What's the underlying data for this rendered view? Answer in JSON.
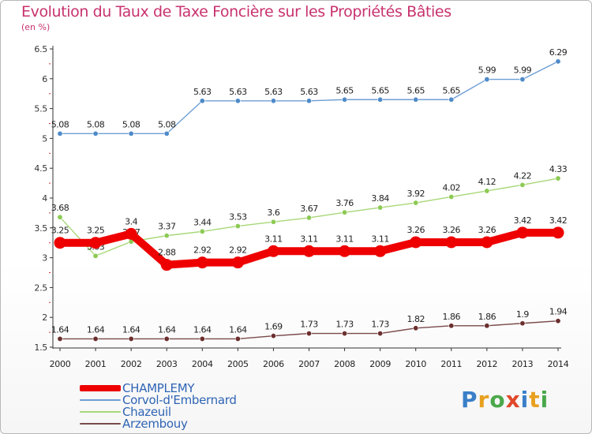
{
  "chart_data": {
    "type": "line",
    "title": "Evolution du Taux de Taxe Foncière sur les Propriétés Bâties",
    "subtitle": "(en %)",
    "xlabel": "",
    "ylabel": "",
    "x": [
      "2000",
      "2001",
      "2002",
      "2003",
      "2004",
      "2005",
      "2006",
      "2007",
      "2008",
      "2009",
      "2010",
      "2011",
      "2012",
      "2013",
      "2014"
    ],
    "ylim": [
      1.5,
      6.5
    ],
    "yticks": [
      1.5,
      2,
      2.5,
      3,
      3.5,
      4,
      4.5,
      5,
      5.5,
      6,
      6.5
    ],
    "grid": false,
    "legend_position": "bottom-left",
    "series": [
      {
        "name": "Corvol-d'Embernard",
        "color": "#6e9ed4",
        "marker": "#4f8ac9",
        "values": [
          5.08,
          5.08,
          5.08,
          5.08,
          5.63,
          5.63,
          5.63,
          5.63,
          5.65,
          5.65,
          5.65,
          5.65,
          5.99,
          5.99,
          6.29
        ],
        "labels": [
          "5.08",
          "5.08",
          "5.08",
          "5.08",
          "5.63",
          "5.63",
          "5.63",
          "5.63",
          "5.65",
          "5.65",
          "5.65",
          "5.65",
          "5.99",
          "5.99",
          "6.29"
        ]
      },
      {
        "name": "Chazeuil",
        "color": "#a8d878",
        "marker": "#8cca54",
        "values": [
          3.68,
          3.03,
          3.27,
          3.37,
          3.44,
          3.53,
          3.6,
          3.67,
          3.76,
          3.84,
          3.92,
          4.02,
          4.12,
          4.22,
          4.33
        ],
        "labels": [
          "3.68",
          "3.03",
          "3.27",
          "3.37",
          "3.44",
          "3.53",
          "3.6",
          "3.67",
          "3.76",
          "3.84",
          "3.92",
          "4.02",
          "4.12",
          "4.22",
          "4.33"
        ]
      },
      {
        "name": "Arzembouy",
        "color": "#7a4a4a",
        "marker": "#6b2e2e",
        "values": [
          1.64,
          1.64,
          1.64,
          1.64,
          1.64,
          1.64,
          1.69,
          1.73,
          1.73,
          1.73,
          1.82,
          1.86,
          1.86,
          1.9,
          1.94
        ],
        "labels": [
          "1.64",
          "1.64",
          "1.64",
          "1.64",
          "1.64",
          "1.64",
          "1.69",
          "1.73",
          "1.73",
          "1.73",
          "1.82",
          "1.86",
          "1.86",
          "1.9",
          "1.94"
        ]
      },
      {
        "name": "CHAMPLEMY",
        "color": "#ee0000",
        "marker": "#ee0000",
        "values": [
          3.25,
          3.25,
          3.4,
          2.88,
          2.92,
          2.92,
          3.11,
          3.11,
          3.11,
          3.11,
          3.26,
          3.26,
          3.26,
          3.42,
          3.42
        ],
        "labels": [
          "3.25",
          "3.25",
          "3.4",
          "2.88",
          "2.92",
          "2.92",
          "3.11",
          "3.11",
          "3.11",
          "3.11",
          "3.26",
          "3.26",
          "3.26",
          "3.42",
          "3.42"
        ]
      }
    ],
    "legend": [
      "CHAMPLEMY",
      "Corvol-d'Embernard",
      "Chazeuil",
      "Arzembouy"
    ]
  },
  "legend_items": [
    {
      "name": "CHAMPLEMY",
      "color": "#ee0000"
    },
    {
      "name": "Corvol-d'Embernard",
      "color": "#6e9ed4"
    },
    {
      "name": "Chazeuil",
      "color": "#a8d878"
    },
    {
      "name": "Arzembouy",
      "color": "#7a4a4a"
    }
  ],
  "logo": {
    "letters": [
      "P",
      "r",
      "o",
      "x",
      "i",
      "t",
      "i"
    ],
    "colors": [
      "#3a7fc8",
      "#e8a020",
      "#4aa84a",
      "#e0482a",
      "#3a7fc8",
      "#e8a020",
      "#4aa84a"
    ]
  }
}
